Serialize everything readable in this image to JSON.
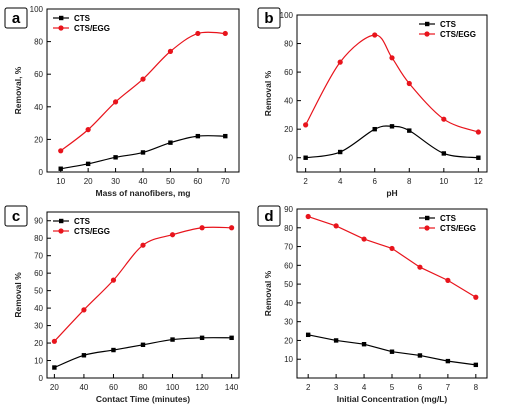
{
  "chart_data": [
    {
      "type": "line",
      "panel_label": "a",
      "xlabel": "Mass of nanofibers, mg",
      "ylabel": "Removal, %",
      "xlim": [
        5,
        75
      ],
      "ylim": [
        0,
        100
      ],
      "xticks": [
        10,
        20,
        30,
        40,
        50,
        60,
        70
      ],
      "yticks": [
        0,
        20,
        40,
        60,
        80,
        100
      ],
      "legend_position": "top-left",
      "smooth": true,
      "series": [
        {
          "name": "CTS",
          "color": "#000000",
          "marker": "square",
          "x": [
            10,
            20,
            30,
            40,
            50,
            60,
            70
          ],
          "y": [
            2,
            5,
            9,
            12,
            18,
            22,
            22
          ]
        },
        {
          "name": "CTS/EGG",
          "color": "#e8141c",
          "marker": "circle",
          "x": [
            10,
            20,
            30,
            40,
            50,
            60,
            70
          ],
          "y": [
            13,
            26,
            43,
            57,
            74,
            85,
            85
          ]
        }
      ]
    },
    {
      "type": "line",
      "panel_label": "b",
      "xlabel": "pH",
      "ylabel": "Removal %",
      "xlim": [
        1.5,
        12.5
      ],
      "ylim": [
        -10,
        100
      ],
      "xticks": [
        2,
        4,
        6,
        8,
        10,
        12
      ],
      "yticks": [
        0,
        20,
        40,
        60,
        80,
        100
      ],
      "legend_position": "top-right",
      "smooth": true,
      "series": [
        {
          "name": "CTS",
          "color": "#000000",
          "marker": "square",
          "x": [
            2,
            4,
            6,
            7,
            8,
            10,
            12
          ],
          "y": [
            0,
            4,
            20,
            22,
            19,
            3,
            0
          ]
        },
        {
          "name": "CTS/EGG",
          "color": "#e8141c",
          "marker": "circle",
          "x": [
            2,
            4,
            6,
            7,
            8,
            10,
            12
          ],
          "y": [
            23,
            67,
            86,
            70,
            52,
            27,
            18
          ]
        }
      ]
    },
    {
      "type": "line",
      "panel_label": "c",
      "xlabel": "Contact Time (minutes)",
      "ylabel": "Removal %",
      "xlim": [
        15,
        145
      ],
      "ylim": [
        0,
        95
      ],
      "xticks": [
        20,
        40,
        60,
        80,
        100,
        120,
        140
      ],
      "yticks": [
        0,
        10,
        20,
        30,
        40,
        50,
        60,
        70,
        80,
        90
      ],
      "legend_position": "top-left",
      "smooth": true,
      "series": [
        {
          "name": "CTS",
          "color": "#000000",
          "marker": "square",
          "x": [
            20,
            40,
            60,
            80,
            100,
            120,
            140
          ],
          "y": [
            6,
            13,
            16,
            19,
            22,
            23,
            23
          ]
        },
        {
          "name": "CTS/EGG",
          "color": "#e8141c",
          "marker": "circle",
          "x": [
            20,
            40,
            60,
            80,
            100,
            120,
            140
          ],
          "y": [
            21,
            39,
            56,
            76,
            82,
            86,
            86
          ]
        }
      ]
    },
    {
      "type": "line",
      "panel_label": "d",
      "xlabel": "Initial Concentration (mg/L)",
      "ylabel": "Removal %",
      "xlim": [
        1.6,
        8.4
      ],
      "ylim": [
        0,
        90
      ],
      "xticks": [
        2,
        3,
        4,
        5,
        6,
        7,
        8
      ],
      "yticks": [
        10,
        20,
        30,
        40,
        50,
        60,
        70,
        80,
        90
      ],
      "legend_position": "top-right",
      "smooth": false,
      "series": [
        {
          "name": "CTS",
          "color": "#000000",
          "marker": "square",
          "x": [
            2,
            3,
            4,
            5,
            6,
            7,
            8
          ],
          "y": [
            23,
            20,
            18,
            14,
            12,
            9,
            7
          ]
        },
        {
          "name": "CTS/EGG",
          "color": "#e8141c",
          "marker": "circle",
          "x": [
            2,
            3,
            4,
            5,
            6,
            7,
            8
          ],
          "y": [
            86,
            81,
            74,
            69,
            59,
            52,
            43
          ]
        }
      ]
    }
  ]
}
